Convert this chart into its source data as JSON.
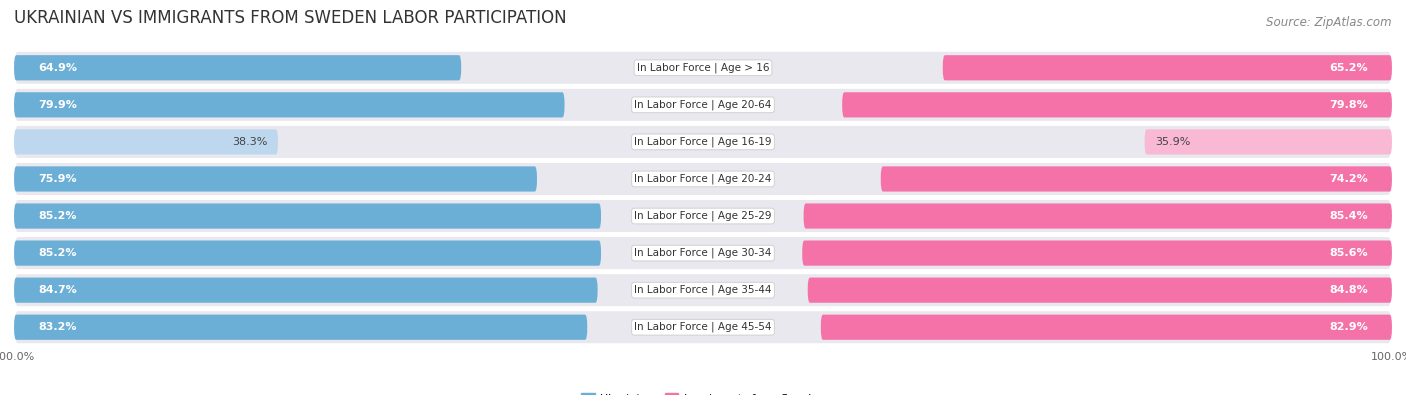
{
  "title": "UKRAINIAN VS IMMIGRANTS FROM SWEDEN LABOR PARTICIPATION",
  "source": "Source: ZipAtlas.com",
  "categories": [
    "In Labor Force | Age > 16",
    "In Labor Force | Age 20-64",
    "In Labor Force | Age 16-19",
    "In Labor Force | Age 20-24",
    "In Labor Force | Age 25-29",
    "In Labor Force | Age 30-34",
    "In Labor Force | Age 35-44",
    "In Labor Force | Age 45-54"
  ],
  "ukrainian_values": [
    64.9,
    79.9,
    38.3,
    75.9,
    85.2,
    85.2,
    84.7,
    83.2
  ],
  "sweden_values": [
    65.2,
    79.8,
    35.9,
    74.2,
    85.4,
    85.6,
    84.8,
    82.9
  ],
  "ukrainian_color": "#6BAED6",
  "ukrainian_color_light": "#BDD7EE",
  "sweden_color": "#F472A8",
  "sweden_color_light": "#F9B8D4",
  "row_bg_color": "#E8E8EE",
  "max_value": 100.0,
  "legend_ukrainian": "Ukrainian",
  "legend_sweden": "Immigrants from Sweden",
  "title_fontsize": 12,
  "source_fontsize": 8.5,
  "cat_label_fontsize": 7.5,
  "bar_label_fontsize": 8,
  "axis_label_fontsize": 8
}
